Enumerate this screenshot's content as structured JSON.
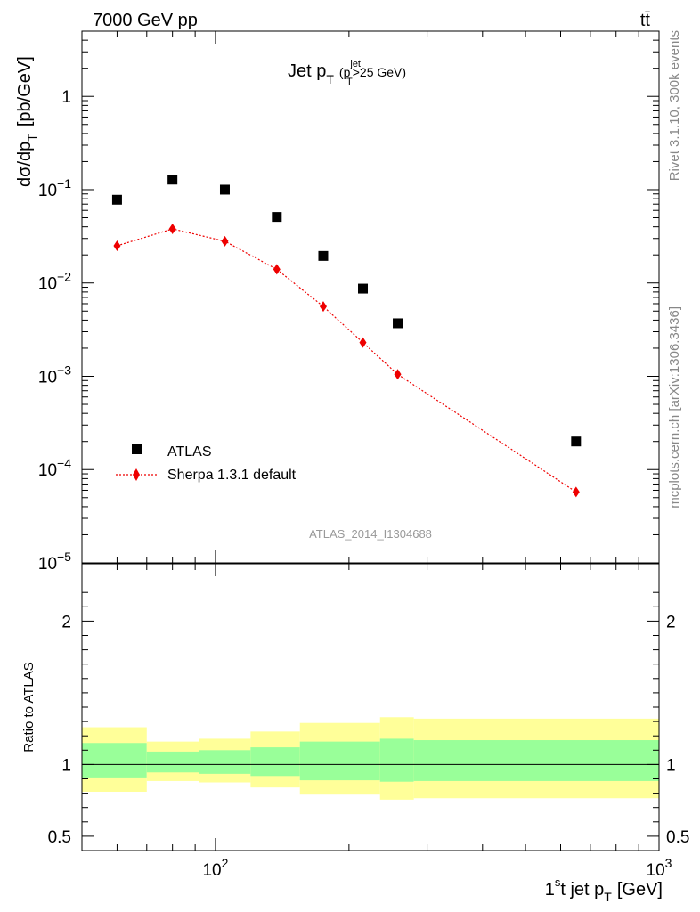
{
  "header": {
    "energy": "7000 GeV pp",
    "process": "tt̄",
    "side_top": "Rivet 3.1.10,  300k events",
    "side_bottom": "mcplots.cern.ch [arXiv:1306.3436]",
    "analysis": "ATLAS_2014_I1304688"
  },
  "chart_data": [
    {
      "type": "scatter",
      "title_main": "Jet p",
      "title_sub": "T",
      "title_cut_open": "(p",
      "title_cut_sup": "jet",
      "title_cut_sub": "T",
      "title_cut_rest": ">25 GeV)",
      "ylabel": "dσ/dp",
      "ylabel_sub": "T",
      "ylabel_unit": "[pb/GeV]",
      "xscale": "log",
      "yscale": "log",
      "xlim": [
        50,
        1000
      ],
      "ylim": [
        1e-05,
        5
      ],
      "ytick_labels": [
        {
          "value": 1,
          "base": "1",
          "exp": ""
        },
        {
          "value": 0.1,
          "base": "10",
          "exp": "−1"
        },
        {
          "value": 0.01,
          "base": "10",
          "exp": "−2"
        },
        {
          "value": 0.001,
          "base": "10",
          "exp": "−3"
        },
        {
          "value": 0.0001,
          "base": "10",
          "exp": "−4"
        },
        {
          "value": 1e-05,
          "base": "10",
          "exp": "−5"
        }
      ],
      "legend_position": "bottom-left",
      "series": [
        {
          "name": "ATLAS",
          "marker": "square",
          "color": "#000000",
          "x": [
            60,
            80,
            105,
            137.5,
            175,
            215,
            257.5,
            650
          ],
          "y": [
            0.078,
            0.128,
            0.1,
            0.051,
            0.0195,
            0.0087,
            0.0037,
            0.0002
          ]
        },
        {
          "name": "Sherpa 1.3.1 default",
          "marker": "diamond",
          "line": "dotted",
          "color": "#ee0000",
          "x": [
            60,
            80,
            105,
            137.5,
            175,
            215,
            257.5,
            650
          ],
          "y": [
            0.025,
            0.038,
            0.028,
            0.014,
            0.0056,
            0.0023,
            0.00105,
            5.75e-05
          ]
        }
      ]
    },
    {
      "type": "area",
      "ylabel": "Ratio to ATLAS",
      "xlabel_main": "1",
      "xlabel_sup": "s",
      "xlabel_rest": "t jet p",
      "xlabel_sub": "T",
      "xlabel_unit": "[GeV]",
      "xscale": "log",
      "xlim": [
        50,
        1000
      ],
      "ylim": [
        0.4,
        2.4
      ],
      "xtick_labels": [
        {
          "value": 100,
          "base": "10",
          "exp": "2"
        },
        {
          "value": 1000,
          "base": "10",
          "exp": "3"
        }
      ],
      "ytick_labels": [
        {
          "value": 0.5,
          "label": "0.5"
        },
        {
          "value": 1,
          "label": "1"
        },
        {
          "value": 2,
          "label": "2"
        }
      ],
      "reference_line": 1,
      "bins": [
        {
          "x_low": 50,
          "x_high": 70,
          "yellow": [
            0.81,
            1.26
          ],
          "green": [
            0.91,
            1.15
          ]
        },
        {
          "x_low": 70,
          "x_high": 92,
          "yellow": [
            0.885,
            1.16
          ],
          "green": [
            0.945,
            1.09
          ]
        },
        {
          "x_low": 92,
          "x_high": 120,
          "yellow": [
            0.875,
            1.18
          ],
          "green": [
            0.935,
            1.1
          ]
        },
        {
          "x_low": 120,
          "x_high": 155,
          "yellow": [
            0.84,
            1.23
          ],
          "green": [
            0.92,
            1.12
          ]
        },
        {
          "x_low": 155,
          "x_high": 235,
          "yellow": [
            0.79,
            1.29
          ],
          "green": [
            0.89,
            1.16
          ]
        },
        {
          "x_low": 235,
          "x_high": 280,
          "yellow": [
            0.755,
            1.33
          ],
          "green": [
            0.88,
            1.18
          ]
        },
        {
          "x_low": 280,
          "x_high": 1000,
          "yellow": [
            0.765,
            1.32
          ],
          "green": [
            0.885,
            1.17
          ]
        }
      ]
    }
  ]
}
